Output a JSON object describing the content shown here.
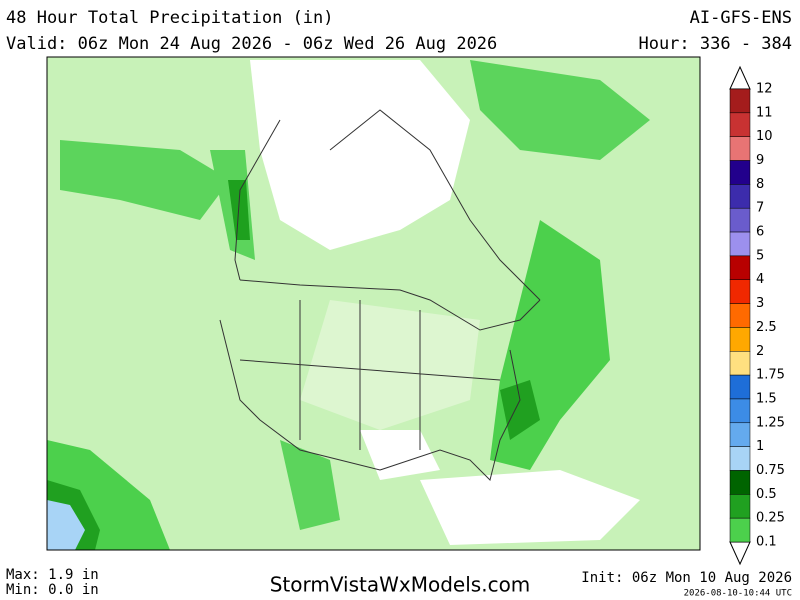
{
  "header": {
    "title": "48 Hour Total Precipitation (in)",
    "model": "AI-GFS-ENS",
    "valid": "Valid: 06z Mon 24 Aug 2026 - 06z Wed 26 Aug 2026",
    "hour": "Hour: 336 - 384"
  },
  "legend": {
    "labels": [
      "12",
      "11",
      "10",
      "9",
      "8",
      "7",
      "6",
      "5",
      "4",
      "3",
      "2.5",
      "2",
      "1.75",
      "1.5",
      "1.25",
      "1",
      "0.75",
      "0.5",
      "0.25",
      "0.1"
    ],
    "colors": [
      "#a41c1c",
      "#c83232",
      "#e87474",
      "#22008c",
      "#3c2cac",
      "#6a5ccc",
      "#9c90ee",
      "#b80000",
      "#f02800",
      "#ff6a00",
      "#ffa800",
      "#ffe080",
      "#1e6ed8",
      "#3c8ce6",
      "#64aaee",
      "#a8d4f6",
      "#006400",
      "#20a020",
      "#4cd04c",
      "#c4f2b4"
    ]
  },
  "footer": {
    "max": "Max: 1.9 in",
    "min": "Min: 0.0 in",
    "site": "StormVistaWxModels.com",
    "init": "Init: 06z Mon 10 Aug 2026",
    "stamp": "2026-08-10-10:44 UTC"
  }
}
